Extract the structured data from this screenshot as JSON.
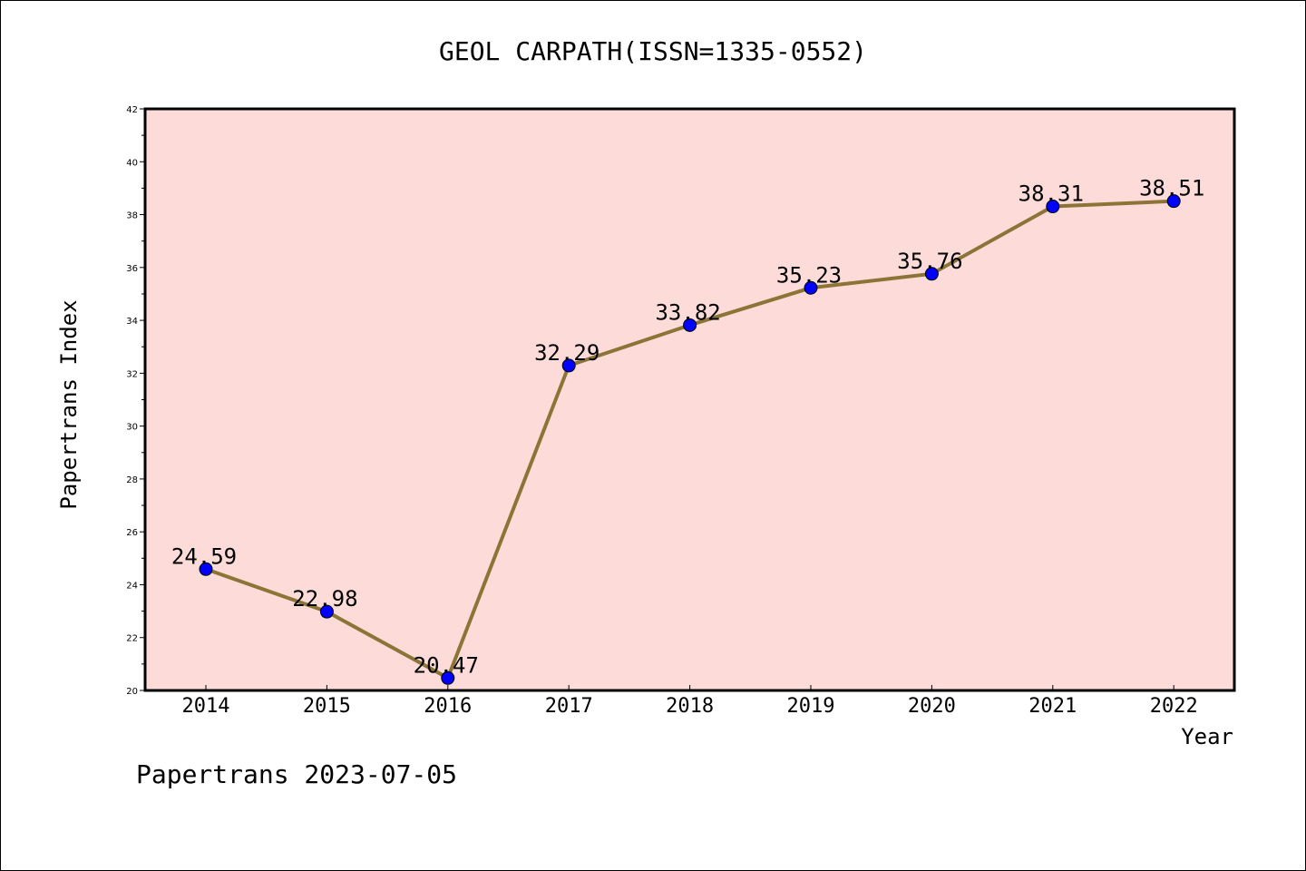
{
  "chart_data": {
    "type": "line",
    "title": "GEOL CARPATH(ISSN=1335-0552)",
    "xlabel": "Year",
    "ylabel": "Papertrans Index",
    "categories": [
      "2014",
      "2015",
      "2016",
      "2017",
      "2018",
      "2019",
      "2020",
      "2021",
      "2022"
    ],
    "values": [
      24.59,
      22.98,
      20.47,
      32.29,
      33.82,
      35.23,
      35.76,
      38.31,
      38.51
    ],
    "data_labels": [
      "24.59",
      "22.98",
      "20.47",
      "32.29",
      "33.82",
      "35.23",
      "35.76",
      "38.31",
      "38.51"
    ],
    "ylim": [
      20,
      42
    ],
    "yticks": [
      "20",
      "22",
      "24",
      "26",
      "28",
      "30",
      "32",
      "34",
      "36",
      "38",
      "40",
      "42"
    ],
    "grid": false,
    "colors": {
      "plot_background": "#fddbd9",
      "line": "#8b7536",
      "marker": "#0000ff"
    },
    "footer": "Papertrans 2023-07-05"
  }
}
